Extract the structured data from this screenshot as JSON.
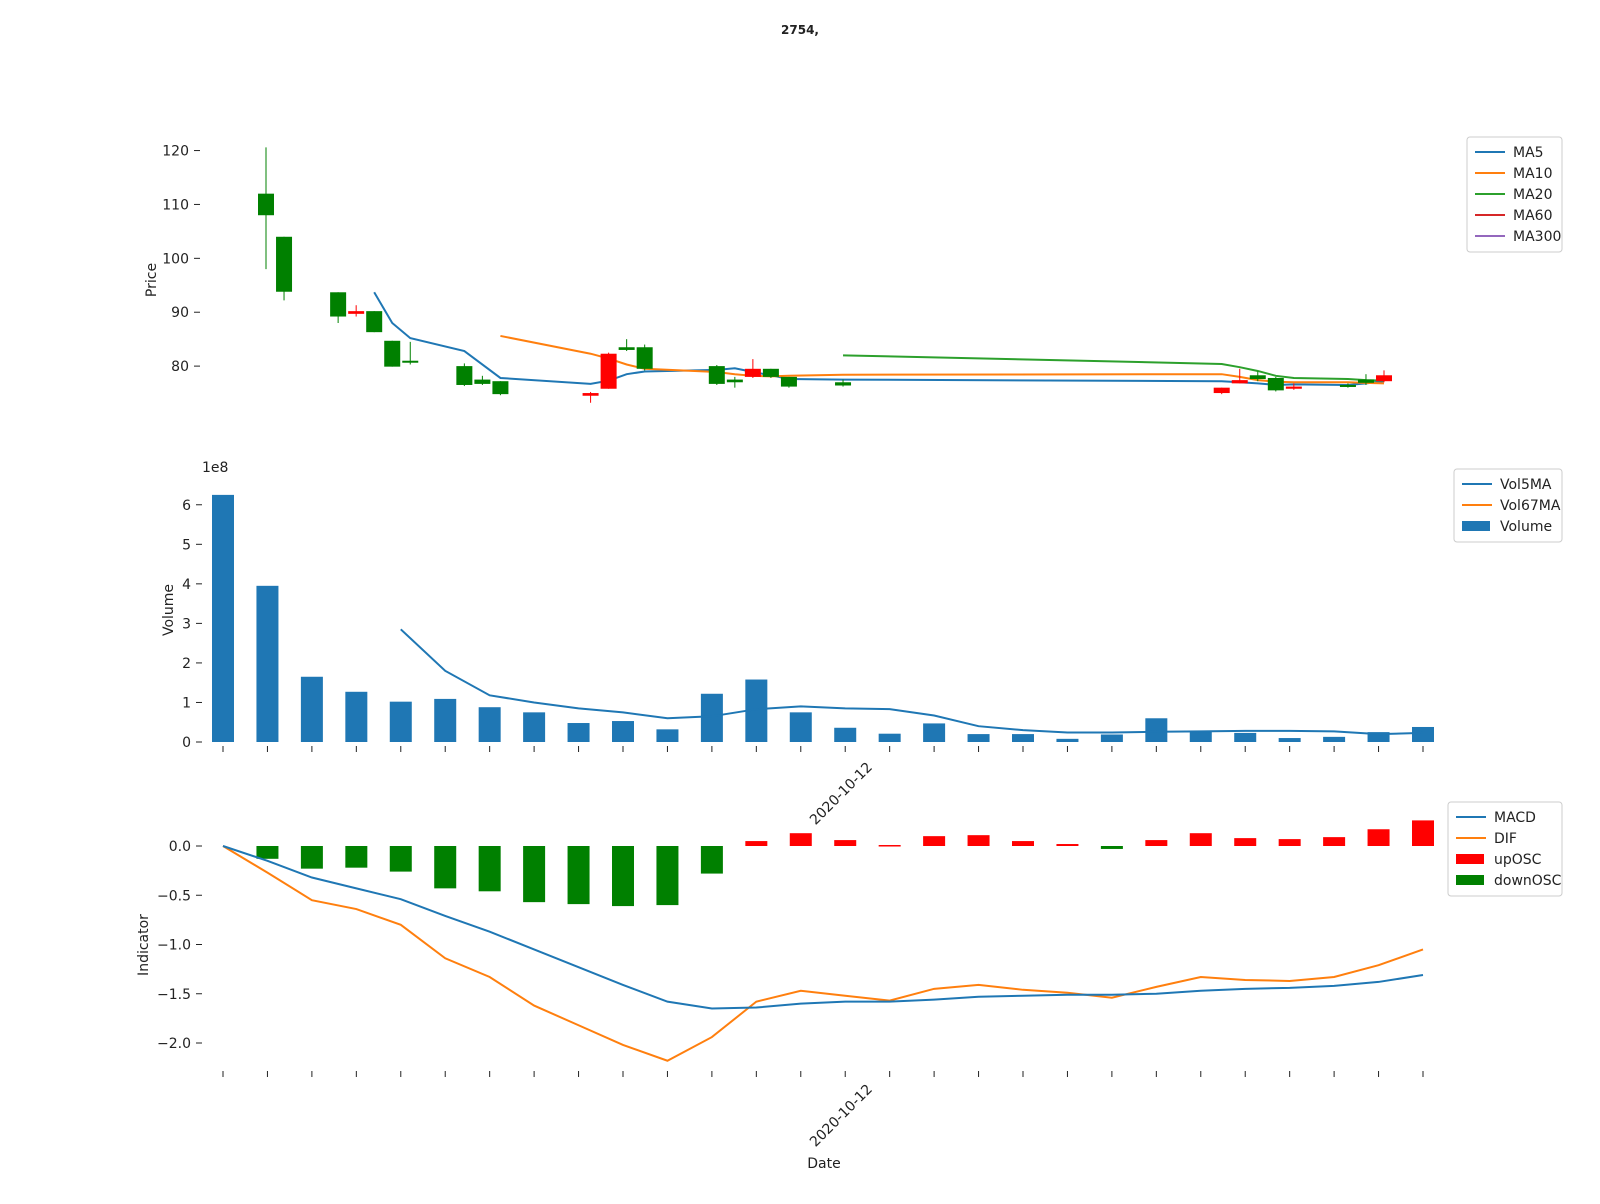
{
  "title": {
    "prefix": "",
    "bold": "2754,",
    "suffix": ""
  },
  "xlabel": "Date",
  "date_tick_label": "2020-10-12",
  "colors": {
    "ma5": "#1f77b4",
    "ma10": "#ff7f0e",
    "ma20": "#2ca02c",
    "ma60": "#d62728",
    "ma300": "#9467bd",
    "up": "#ff0000",
    "down": "#008000",
    "volume": "#1f77b4"
  },
  "chart_data": [
    {
      "type": "candlestick",
      "ylabel": "Price",
      "ylim": [
        70,
        124
      ],
      "yticks": [
        80,
        90,
        100,
        110,
        120
      ],
      "legend": [
        "MA5",
        "MA10",
        "MA20",
        "MA60",
        "MA300"
      ],
      "legend_position": "top-right",
      "candles": [
        {
          "x": 1,
          "open": 112.0,
          "high": 120.6,
          "low": 98.0,
          "close": 108.0
        },
        {
          "x": 2,
          "open": 104.0,
          "high": 104.0,
          "low": 92.2,
          "close": 93.8
        },
        {
          "x": 5,
          "open": 93.7,
          "high": 93.7,
          "low": 88.0,
          "close": 89.2
        },
        {
          "x": 6,
          "open": 89.7,
          "high": 91.3,
          "low": 89.2,
          "close": 90.2
        },
        {
          "x": 7,
          "open": 90.2,
          "high": 90.2,
          "low": 86.3,
          "close": 86.3
        },
        {
          "x": 8,
          "open": 84.7,
          "high": 84.7,
          "low": 79.9,
          "close": 79.9
        },
        {
          "x": 9,
          "open": 81.0,
          "high": 84.5,
          "low": 80.3,
          "close": 80.7
        },
        {
          "x": 12,
          "open": 80.0,
          "high": 80.5,
          "low": 76.3,
          "close": 76.5
        },
        {
          "x": 13,
          "open": 77.5,
          "high": 78.2,
          "low": 76.5,
          "close": 76.7
        },
        {
          "x": 14,
          "open": 77.2,
          "high": 77.2,
          "low": 74.6,
          "close": 74.8
        },
        {
          "x": 19,
          "open": 74.5,
          "high": 75.2,
          "low": 73.2,
          "close": 75.0
        },
        {
          "x": 20,
          "open": 75.8,
          "high": 82.5,
          "low": 75.8,
          "close": 82.3
        },
        {
          "x": 21,
          "open": 83.5,
          "high": 85.0,
          "low": 82.8,
          "close": 83.0
        },
        {
          "x": 22,
          "open": 83.5,
          "high": 84.0,
          "low": 79.2,
          "close": 79.5
        },
        {
          "x": 26,
          "open": 80.0,
          "high": 80.2,
          "low": 76.5,
          "close": 76.7
        },
        {
          "x": 27,
          "open": 77.5,
          "high": 78.0,
          "low": 76.0,
          "close": 77.0
        },
        {
          "x": 28,
          "open": 78.0,
          "high": 81.3,
          "low": 77.8,
          "close": 79.5
        },
        {
          "x": 29,
          "open": 79.5,
          "high": 79.5,
          "low": 77.8,
          "close": 78.0
        },
        {
          "x": 30,
          "open": 78.0,
          "high": 78.0,
          "low": 76.0,
          "close": 76.2
        },
        {
          "x": 33,
          "open": 77.0,
          "high": 77.5,
          "low": 76.2,
          "close": 76.4
        },
        {
          "x": 54,
          "open": 75.0,
          "high": 76.0,
          "low": 74.8,
          "close": 76.0
        },
        {
          "x": 55,
          "open": 76.8,
          "high": 79.5,
          "low": 76.8,
          "close": 77.4
        },
        {
          "x": 56,
          "open": 78.3,
          "high": 79.0,
          "low": 77.2,
          "close": 77.6
        },
        {
          "x": 57,
          "open": 77.8,
          "high": 78.0,
          "low": 75.3,
          "close": 75.5
        },
        {
          "x": 58,
          "open": 75.8,
          "high": 76.8,
          "low": 75.6,
          "close": 76.2
        },
        {
          "x": 61,
          "open": 76.5,
          "high": 76.8,
          "low": 76.0,
          "close": 76.2
        },
        {
          "x": 62,
          "open": 77.5,
          "high": 78.5,
          "low": 76.5,
          "close": 76.9
        },
        {
          "x": 63,
          "open": 77.2,
          "high": 79.2,
          "low": 77.0,
          "close": 78.3
        }
      ],
      "ma_lines": {
        "MA5": [
          [
            7,
            93.7
          ],
          [
            8,
            88.0
          ],
          [
            9,
            85.2
          ],
          [
            12,
            82.8
          ],
          [
            14,
            77.8
          ],
          [
            19,
            76.7
          ],
          [
            20,
            77.3
          ],
          [
            21,
            78.5
          ],
          [
            22,
            79.0
          ],
          [
            26,
            79.3
          ],
          [
            27,
            79.6
          ],
          [
            28,
            78.9
          ],
          [
            29,
            78.3
          ],
          [
            30,
            77.6
          ],
          [
            33,
            77.5
          ],
          [
            54,
            77.2
          ],
          [
            55,
            77.0
          ],
          [
            56,
            76.8
          ],
          [
            57,
            76.5
          ],
          [
            58,
            76.6
          ],
          [
            61,
            76.5
          ],
          [
            62,
            76.8
          ],
          [
            63,
            77.2
          ]
        ],
        "MA10": [
          [
            14,
            85.6
          ],
          [
            19,
            82.3
          ],
          [
            20,
            81.4
          ],
          [
            21,
            80.3
          ],
          [
            22,
            79.5
          ],
          [
            26,
            78.9
          ],
          [
            27,
            78.5
          ],
          [
            28,
            78.2
          ],
          [
            29,
            78.1
          ],
          [
            30,
            78.2
          ],
          [
            33,
            78.4
          ],
          [
            54,
            78.5
          ],
          [
            55,
            78.0
          ],
          [
            56,
            77.4
          ],
          [
            57,
            77.1
          ],
          [
            58,
            77.0
          ],
          [
            61,
            77.0
          ],
          [
            62,
            76.9
          ],
          [
            63,
            76.8
          ]
        ],
        "MA20": [
          [
            33,
            82.0
          ],
          [
            54,
            80.4
          ],
          [
            55,
            79.8
          ],
          [
            56,
            79.1
          ],
          [
            57,
            78.2
          ],
          [
            58,
            77.8
          ],
          [
            61,
            77.6
          ],
          [
            62,
            77.4
          ],
          [
            63,
            77.3
          ]
        ],
        "MA60": [],
        "MA300": []
      }
    },
    {
      "type": "bar",
      "ylabel": "Volume",
      "offset_label": "1e8",
      "ylim": [
        0,
        6.5
      ],
      "yticks": [
        0,
        1,
        2,
        3,
        4,
        5,
        6
      ],
      "legend": [
        "Vol5MA",
        "Vol67MA",
        "Volume"
      ],
      "legend_position": "top-right",
      "values": [
        6.25,
        3.95,
        1.65,
        1.27,
        1.02,
        1.09,
        0.88,
        0.75,
        0.48,
        0.53,
        0.32,
        1.22,
        1.58,
        0.75,
        0.36,
        0.21,
        0.47,
        0.2,
        0.2,
        0.08,
        0.19,
        0.6,
        0.27,
        0.23,
        0.1,
        0.13,
        0.25,
        0.38
      ],
      "vol5ma": [
        [
          4,
          2.85
        ],
        [
          5,
          1.8
        ],
        [
          6,
          1.18
        ],
        [
          7,
          1.0
        ],
        [
          8,
          0.85
        ],
        [
          9,
          0.75
        ],
        [
          10,
          0.6
        ],
        [
          11,
          0.65
        ],
        [
          12,
          0.83
        ],
        [
          13,
          0.9
        ],
        [
          14,
          0.85
        ],
        [
          15,
          0.83
        ],
        [
          16,
          0.67
        ],
        [
          17,
          0.4
        ],
        [
          18,
          0.3
        ],
        [
          19,
          0.24
        ],
        [
          20,
          0.24
        ],
        [
          21,
          0.26
        ],
        [
          22,
          0.27
        ],
        [
          23,
          0.28
        ],
        [
          24,
          0.28
        ],
        [
          25,
          0.27
        ],
        [
          26,
          0.2
        ],
        [
          27,
          0.23
        ]
      ],
      "vol67ma": []
    },
    {
      "type": "line",
      "ylabel": "Indicator",
      "ylim": [
        -2.22,
        0.1
      ],
      "yticks": [
        0.0,
        -0.5,
        -1.0,
        -1.5,
        -2.0
      ],
      "ytick_labels": [
        "0.0",
        "−0.5",
        "−1.0",
        "−1.5",
        "−2.0"
      ],
      "legend": [
        "MACD",
        "DIF",
        "upOSC",
        "downOSC"
      ],
      "legend_position": "top-right",
      "macd": [
        0.0,
        -0.15,
        -0.32,
        -0.43,
        -0.54,
        -0.71,
        -0.87,
        -1.05,
        -1.23,
        -1.41,
        -1.58,
        -1.65,
        -1.64,
        -1.6,
        -1.58,
        -1.58,
        -1.56,
        -1.53,
        -1.52,
        -1.51,
        -1.51,
        -1.5,
        -1.47,
        -1.45,
        -1.44,
        -1.42,
        -1.38,
        -1.31
      ],
      "dif": [
        0.0,
        -0.27,
        -0.55,
        -0.64,
        -0.8,
        -1.14,
        -1.33,
        -1.62,
        -1.82,
        -2.02,
        -2.18,
        -1.94,
        -1.58,
        -1.47,
        -1.52,
        -1.57,
        -1.45,
        -1.41,
        -1.46,
        -1.49,
        -1.54,
        -1.43,
        -1.33,
        -1.36,
        -1.37,
        -1.33,
        -1.21,
        -1.05
      ],
      "osc": [
        0.0,
        -0.13,
        -0.23,
        -0.22,
        -0.26,
        -0.43,
        -0.46,
        -0.57,
        -0.59,
        -0.61,
        -0.6,
        -0.28,
        0.05,
        0.13,
        0.06,
        0.01,
        0.1,
        0.11,
        0.05,
        0.02,
        -0.03,
        0.06,
        0.13,
        0.08,
        0.07,
        0.09,
        0.17,
        0.26
      ]
    }
  ]
}
